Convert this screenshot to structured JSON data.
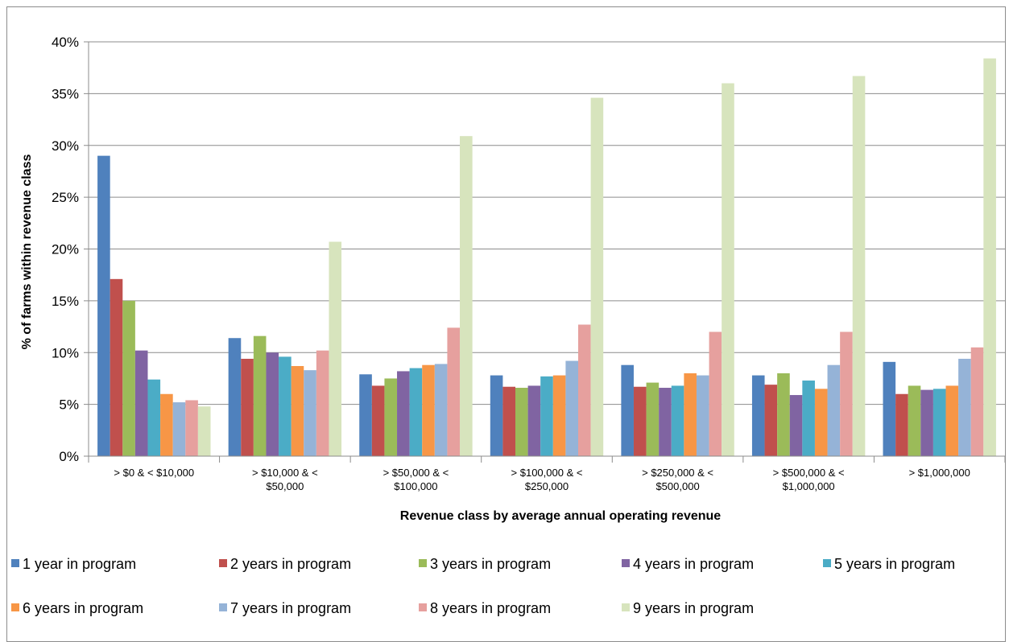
{
  "chart_data": {
    "type": "bar",
    "title": "",
    "xlabel": "Revenue class by average annual operating revenue",
    "ylabel": "% of farms within revenue class",
    "ylim": [
      0,
      40
    ],
    "yticks": [
      "0%",
      "5%",
      "10%",
      "15%",
      "20%",
      "25%",
      "30%",
      "35%",
      "40%"
    ],
    "grid": true,
    "legend_position": "bottom",
    "categories": [
      [
        "> $0 & < $10,000"
      ],
      [
        "> $10,000 & <",
        "$50,000"
      ],
      [
        "> $50,000 & <",
        "$100,000"
      ],
      [
        "> $100,000 & <",
        "$250,000"
      ],
      [
        "> $250,000 & <",
        "$500,000"
      ],
      [
        "> $500,000 & <",
        "$1,000,000"
      ],
      [
        "> $1,000,000"
      ]
    ],
    "series": [
      {
        "name": "1 year in program",
        "color": "#4f81bd",
        "values": [
          29.0,
          11.4,
          7.9,
          7.8,
          8.8,
          7.8,
          9.1
        ]
      },
      {
        "name": "2 years in program",
        "color": "#c0504d",
        "values": [
          17.1,
          9.4,
          6.8,
          6.7,
          6.7,
          6.9,
          6.0
        ]
      },
      {
        "name": "3 years in program",
        "color": "#9bbb59",
        "values": [
          15.0,
          11.6,
          7.5,
          6.6,
          7.1,
          8.0,
          6.8
        ]
      },
      {
        "name": "4 years in program",
        "color": "#8064a2",
        "values": [
          10.2,
          10.0,
          8.2,
          6.8,
          6.6,
          5.9,
          6.4
        ]
      },
      {
        "name": "5 years in program",
        "color": "#4bacc6",
        "values": [
          7.4,
          9.6,
          8.5,
          7.7,
          6.8,
          7.3,
          6.5
        ]
      },
      {
        "name": "6 years in program",
        "color": "#f79646",
        "values": [
          6.0,
          8.7,
          8.8,
          7.8,
          8.0,
          6.5,
          6.8
        ]
      },
      {
        "name": "7 years in program",
        "color": "#95b3d7",
        "values": [
          5.2,
          8.3,
          8.9,
          9.2,
          7.8,
          8.8,
          9.4
        ]
      },
      {
        "name": "8 years in program",
        "color": "#e6a09e",
        "values": [
          5.4,
          10.2,
          12.4,
          12.7,
          12.0,
          12.0,
          10.5
        ]
      },
      {
        "name": "9 years in program",
        "color": "#d7e4bd",
        "values": [
          4.8,
          20.7,
          30.9,
          34.6,
          36.0,
          36.7,
          38.4
        ]
      }
    ]
  }
}
